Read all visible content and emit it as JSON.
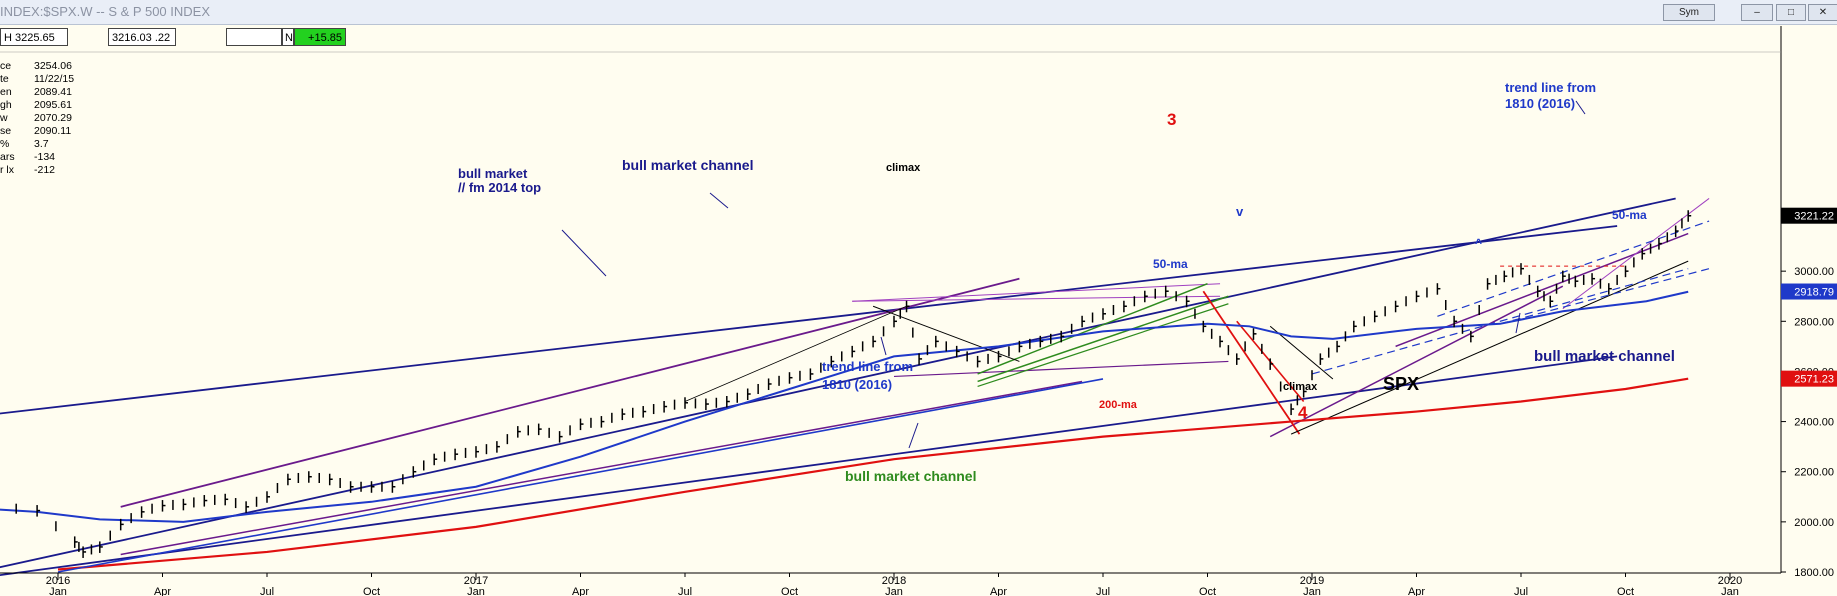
{
  "window": {
    "title": "INDEX:$SPX.W -- S & P 500 INDEX",
    "sym_label": "Sym",
    "minimize_icon": "minimize-icon",
    "restore_icon": "restore-icon",
    "close_icon": "close-icon"
  },
  "infobar": {
    "cells": [
      "H 3225.65",
      "3216.03 .22",
      "",
      "N",
      "+15.85"
    ]
  },
  "readout": [
    {
      "k": "ce",
      "v": "3254.06"
    },
    {
      "k": "te",
      "v": "11/22/15"
    },
    {
      "k": "en",
      "v": "2089.41"
    },
    {
      "k": "gh",
      "v": "2095.61"
    },
    {
      "k": "w",
      "v": "2070.29"
    },
    {
      "k": "se",
      "v": "2090.11"
    },
    {
      "k": "%",
      "v": "3.7"
    },
    {
      "k": "ars",
      "v": "-134"
    },
    {
      "k": "r lx",
      "v": "-212"
    }
  ],
  "chart_data": {
    "type": "line",
    "title": "SPX",
    "ylim": [
      1790,
      3280
    ],
    "y_ticks": [
      "1800.00",
      "2000.00",
      "2200.00",
      "2400.00",
      "2600.00",
      "2800.00",
      "3000.00"
    ],
    "x_year_labels": [
      "2016",
      "2017",
      "2018",
      "2019",
      "2020"
    ],
    "x_month_labels": [
      "Jan",
      "Apr",
      "Jul",
      "Oct",
      "Jan",
      "Apr",
      "Jul",
      "Oct",
      "Jan",
      "Apr",
      "Jul",
      "Oct",
      "Jan",
      "Apr",
      "Jul",
      "Oct",
      "Jan"
    ],
    "price_tags": [
      {
        "text": "3221.22",
        "value": 3221.22,
        "bg": "#000000",
        "fg": "#ffffff"
      },
      {
        "text": "2918.79",
        "value": 2918.79,
        "bg": "#1f39c9",
        "fg": "#ffffff"
      },
      {
        "text": "2571.23",
        "value": 2571.23,
        "bg": "#e01010",
        "fg": "#ffffff"
      }
    ],
    "series": [
      {
        "name": "price",
        "x": [
          2015.75,
          2015.85,
          2015.95,
          2016.04,
          2016.06,
          2016.1,
          2016.15,
          2016.2,
          2016.25,
          2016.3,
          2016.35,
          2016.4,
          2016.45,
          2016.5,
          2016.55,
          2016.6,
          2016.65,
          2016.7,
          2016.75,
          2016.8,
          2016.85,
          2016.9,
          2016.95,
          2017.0,
          2017.05,
          2017.1,
          2017.15,
          2017.2,
          2017.25,
          2017.3,
          2017.35,
          2017.4,
          2017.45,
          2017.5,
          2017.55,
          2017.6,
          2017.65,
          2017.7,
          2017.75,
          2017.8,
          2017.85,
          2017.9,
          2017.95,
          2018.0,
          2018.03,
          2018.06,
          2018.1,
          2018.15,
          2018.2,
          2018.25,
          2018.3,
          2018.35,
          2018.4,
          2018.45,
          2018.5,
          2018.55,
          2018.6,
          2018.65,
          2018.7,
          2018.74,
          2018.78,
          2018.82,
          2018.86,
          2018.9,
          2018.95,
          2018.98,
          2019.02,
          2019.06,
          2019.1,
          2019.15,
          2019.2,
          2019.25,
          2019.3,
          2019.34,
          2019.38,
          2019.42,
          2019.46,
          2019.5,
          2019.54,
          2019.57,
          2019.6,
          2019.63,
          2019.67,
          2019.71,
          2019.75,
          2019.79,
          2019.83,
          2019.87,
          2019.9
        ],
        "y": [
          2090,
          2060,
          2045,
          1920,
          1880,
          1900,
          1990,
          2040,
          2065,
          2070,
          2085,
          2090,
          2060,
          2100,
          2170,
          2180,
          2170,
          2140,
          2140,
          2140,
          2200,
          2250,
          2270,
          2280,
          2300,
          2360,
          2370,
          2340,
          2390,
          2400,
          2430,
          2440,
          2460,
          2475,
          2470,
          2480,
          2510,
          2550,
          2575,
          2590,
          2640,
          2680,
          2720,
          2800,
          2860,
          2650,
          2720,
          2680,
          2640,
          2660,
          2700,
          2720,
          2740,
          2800,
          2830,
          2860,
          2900,
          2920,
          2880,
          2780,
          2720,
          2650,
          2750,
          2630,
          2450,
          2520,
          2650,
          2700,
          2780,
          2820,
          2860,
          2900,
          2930,
          2800,
          2740,
          2950,
          2980,
          3010,
          2920,
          2880,
          2980,
          2960,
          2970,
          2930,
          3000,
          3070,
          3110,
          3160,
          3221
        ]
      },
      {
        "name": "50-ma",
        "x": [
          2015.75,
          2015.95,
          2016.1,
          2016.3,
          2016.5,
          2016.75,
          2017.0,
          2017.25,
          2017.5,
          2017.75,
          2018.0,
          2018.25,
          2018.5,
          2018.75,
          2018.85,
          2018.95,
          2019.05,
          2019.25,
          2019.45,
          2019.6,
          2019.8,
          2019.9
        ],
        "y": [
          2060,
          2040,
          2010,
          2000,
          2040,
          2080,
          2140,
          2260,
          2400,
          2530,
          2660,
          2700,
          2760,
          2790,
          2780,
          2740,
          2730,
          2770,
          2790,
          2840,
          2880,
          2918
        ]
      },
      {
        "name": "200-ma",
        "x": [
          2016.0,
          2016.5,
          2017.0,
          2017.5,
          2018.0,
          2018.5,
          2018.95,
          2019.25,
          2019.5,
          2019.75,
          2019.9
        ],
        "y": [
          1810,
          1880,
          1980,
          2120,
          2250,
          2340,
          2400,
          2440,
          2480,
          2530,
          2571
        ]
      }
    ],
    "annotations": [
      {
        "text": "bull market channel",
        "color": "#1a1a8c"
      },
      {
        "text": "bull market",
        "color": "#1a1a8c"
      },
      {
        "text": "// fm 2014 top",
        "color": "#1a1a8c"
      },
      {
        "text": "climax",
        "color": "#000000"
      },
      {
        "text": "3",
        "color": "#e01010"
      },
      {
        "text": "v",
        "color": "#1f39c9"
      },
      {
        "text": "50-ma",
        "color": "#1f39c9"
      },
      {
        "text": "trend line from",
        "color": "#1f39c9"
      },
      {
        "text": "1810 (2016)",
        "color": "#1f39c9"
      },
      {
        "text": "climax",
        "color": "#000000"
      },
      {
        "text": "4",
        "color": "#e01010"
      },
      {
        "text": "200-ma",
        "color": "#e01010"
      },
      {
        "text": "SPX",
        "color": "#000000"
      },
      {
        "text": "bull market channel",
        "color": "#1a1a8c"
      },
      {
        "text": "bull market channel",
        "color": "#2e8b1e"
      },
      {
        "text": "trend line from",
        "color": "#1f39c9"
      },
      {
        "text": "1810 (2016)",
        "color": "#1f39c9"
      },
      {
        "text": "50-ma",
        "color": "#1f39c9"
      },
      {
        "text": "^",
        "color": "#1f39c9"
      }
    ]
  }
}
